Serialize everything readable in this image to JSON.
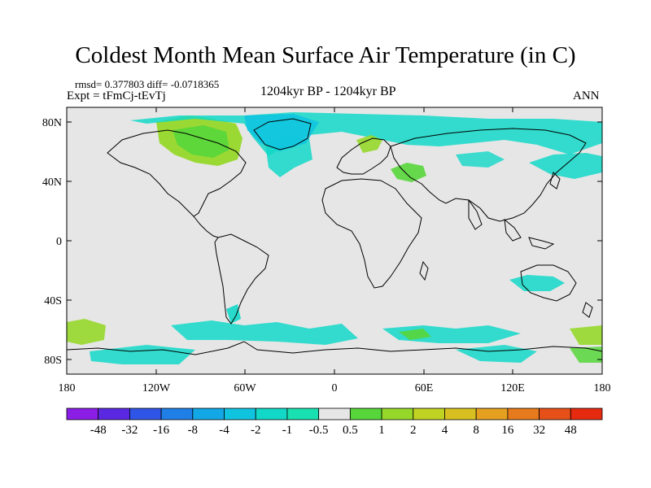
{
  "title": "Coldest Month Mean Surface Air Temperature (in C)",
  "stats": "rmsd= 0.377803 diff= -0.0718365",
  "experiment": "Expt = tFmCj-tEvTj",
  "period": "1204kyr BP - 1204kyr BP",
  "season": "ANN",
  "axes": {
    "y_ticks": [
      "80N",
      "40N",
      "0",
      "40S",
      "80S"
    ],
    "x_ticks": [
      "180",
      "120W",
      "60W",
      "0",
      "60E",
      "120E",
      "180"
    ]
  },
  "colorbar": {
    "labels": [
      "-48",
      "-32",
      "-16",
      "-8",
      "-4",
      "-2",
      "-1",
      "-0.5",
      "0.5",
      "1",
      "2",
      "4",
      "8",
      "16",
      "32",
      "48"
    ],
    "colors": [
      "#8a1ee6",
      "#5a28e0",
      "#2f55e6",
      "#1f7fe6",
      "#12a8e6",
      "#10c4e0",
      "#12d8c8",
      "#18e0b0",
      "#e6e6e6",
      "#56d63a",
      "#96d82a",
      "#c0d222",
      "#d8c020",
      "#e6a020",
      "#e67a1c",
      "#e65018",
      "#e62a10"
    ]
  }
}
